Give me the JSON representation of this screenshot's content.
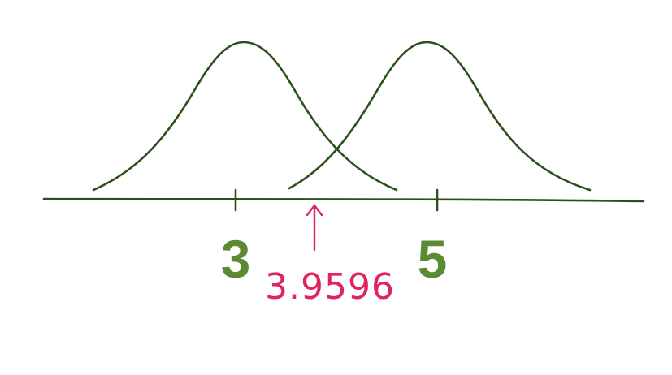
{
  "colors": {
    "curve": "#2b4f1d",
    "axis": "#2b4f1d",
    "tick_label": "#5b8a34",
    "marker": "#e0245e"
  },
  "diagram": {
    "description_type": "two overlapping normal distributions on a number line",
    "distributions": [
      {
        "name": "left-distribution",
        "mean": 3
      },
      {
        "name": "right-distribution",
        "mean": 5
      }
    ],
    "ticks": [
      {
        "value": 3,
        "label": "3"
      },
      {
        "value": 5,
        "label": "5"
      }
    ],
    "marker": {
      "value": 3.9596,
      "label": "3.9596"
    }
  }
}
